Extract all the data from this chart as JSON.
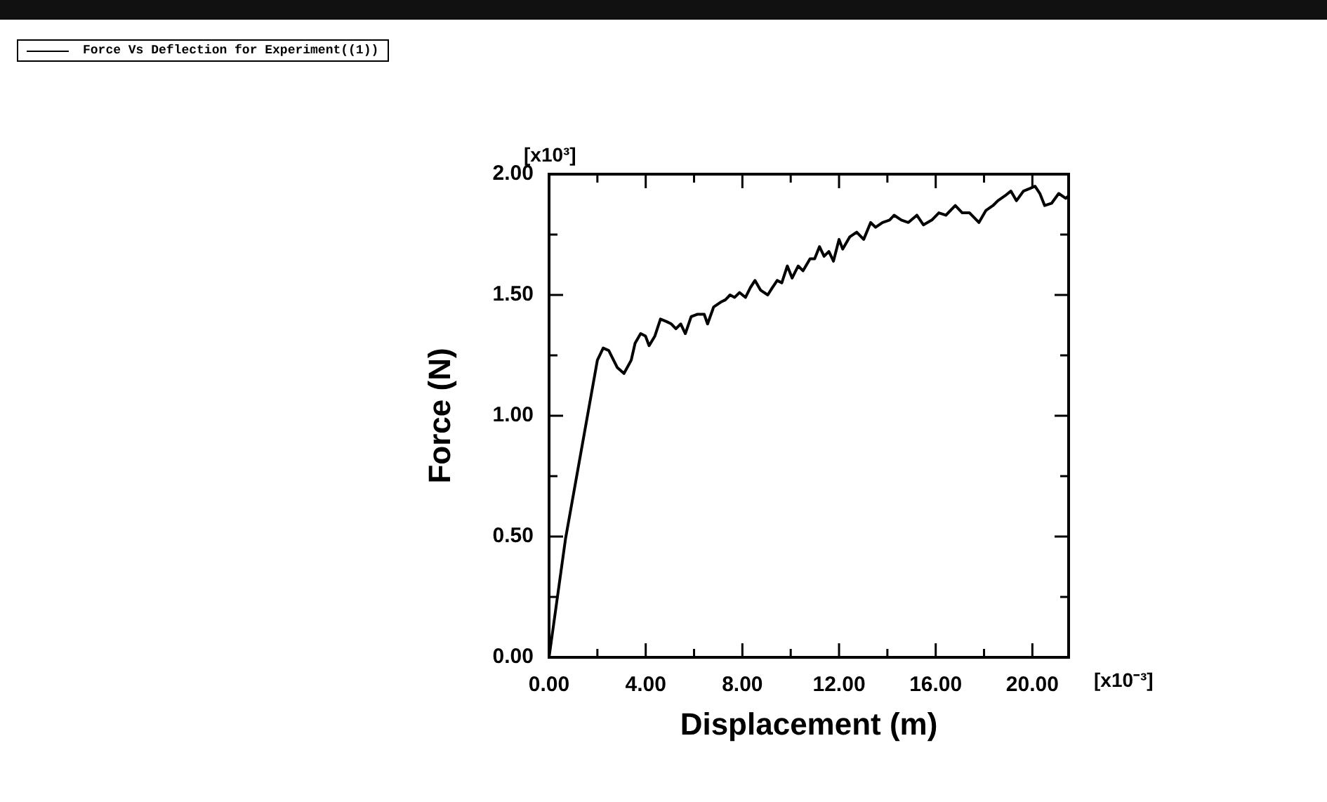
{
  "chart_data": {
    "type": "line",
    "xlabel": "Displacement (m)",
    "ylabel": "Force (N)",
    "annotations": [
      "[x10³]",
      "[x10⁻³]"
    ],
    "xlim": [
      0,
      21.5
    ],
    "ylim": [
      0,
      2
    ],
    "xticks": [
      {
        "value": 0,
        "label": "0.00"
      },
      {
        "value": 2,
        "label": null
      },
      {
        "value": 4,
        "label": "4.00"
      },
      {
        "value": 6,
        "label": null
      },
      {
        "value": 8,
        "label": "8.00"
      },
      {
        "value": 10,
        "label": null
      },
      {
        "value": 12,
        "label": "12.00"
      },
      {
        "value": 14,
        "label": null
      },
      {
        "value": 16,
        "label": "16.00"
      },
      {
        "value": 18,
        "label": null
      },
      {
        "value": 20,
        "label": "20.00"
      }
    ],
    "yticks": [
      {
        "value": 0,
        "label": "0.00"
      },
      {
        "value": 0.25,
        "label": null
      },
      {
        "value": 0.5,
        "label": "0.50"
      },
      {
        "value": 0.75,
        "label": null
      },
      {
        "value": 1,
        "label": "1.00"
      },
      {
        "value": 1.25,
        "label": null
      },
      {
        "value": 1.5,
        "label": "1.50"
      },
      {
        "value": 1.75,
        "label": null
      },
      {
        "value": 2,
        "label": "2.00"
      }
    ],
    "legend": "top left",
    "marker": "none",
    "line_style": "solid",
    "series": [
      {
        "name": "Force Vs Deflection for Experiment((1))",
        "color": "#000000",
        "x": [
          0,
          0.68,
          2.0,
          2.24,
          2.47,
          2.82,
          3.1,
          3.4,
          3.56,
          3.79,
          3.99,
          4.14,
          4.38,
          4.61,
          4.86,
          5.06,
          5.25,
          5.45,
          5.64,
          5.88,
          6.13,
          6.42,
          6.56,
          6.81,
          7.1,
          7.3,
          7.49,
          7.68,
          7.88,
          8.13,
          8.33,
          8.52,
          8.75,
          9.05,
          9.24,
          9.44,
          9.63,
          9.86,
          10.06,
          10.31,
          10.51,
          10.8,
          10.99,
          11.19,
          11.38,
          11.58,
          11.77,
          12.0,
          12.15,
          12.44,
          12.73,
          13.02,
          13.31,
          13.51,
          13.8,
          14.09,
          14.28,
          14.58,
          14.87,
          15.22,
          15.49,
          15.84,
          16.13,
          16.42,
          16.81,
          17.1,
          17.4,
          17.79,
          18.08,
          18.37,
          18.57,
          18.86,
          19.11,
          19.34,
          19.63,
          19.88,
          20.11,
          20.31,
          20.51,
          20.8,
          21.09,
          21.38,
          21.5
        ],
        "values": [
          0,
          0.49,
          1.23,
          1.28,
          1.27,
          1.2,
          1.175,
          1.23,
          1.3,
          1.34,
          1.33,
          1.29,
          1.33,
          1.4,
          1.39,
          1.38,
          1.36,
          1.38,
          1.34,
          1.41,
          1.42,
          1.42,
          1.38,
          1.45,
          1.47,
          1.48,
          1.5,
          1.49,
          1.51,
          1.49,
          1.53,
          1.56,
          1.52,
          1.5,
          1.53,
          1.56,
          1.55,
          1.62,
          1.57,
          1.62,
          1.6,
          1.65,
          1.65,
          1.7,
          1.66,
          1.68,
          1.64,
          1.73,
          1.69,
          1.74,
          1.76,
          1.73,
          1.8,
          1.78,
          1.8,
          1.81,
          1.83,
          1.81,
          1.8,
          1.83,
          1.79,
          1.81,
          1.84,
          1.83,
          1.87,
          1.84,
          1.84,
          1.8,
          1.85,
          1.87,
          1.89,
          1.91,
          1.93,
          1.89,
          1.93,
          1.94,
          1.95,
          1.92,
          1.87,
          1.88,
          1.92,
          1.9,
          1.91
        ]
      }
    ]
  }
}
